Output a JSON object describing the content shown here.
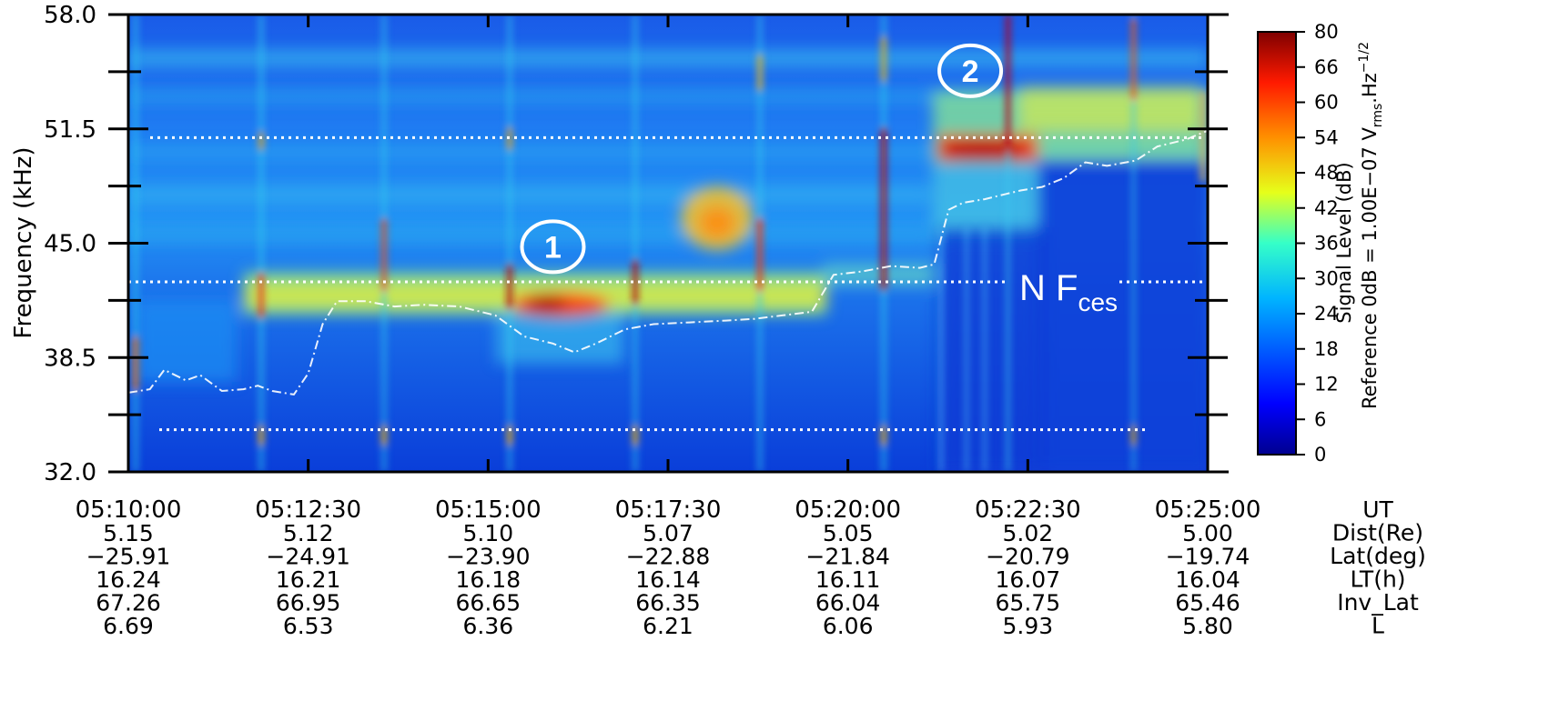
{
  "chart_data": {
    "type": "heatmap",
    "ylabel": "Frequency (kHz)",
    "y_ticks": [
      "32.0",
      "38.5",
      "45.0",
      "51.5",
      "58.0"
    ],
    "y_tick_values": [
      32.0,
      38.5,
      45.0,
      51.5,
      58.0
    ],
    "ylim": [
      32.0,
      58.0
    ],
    "x_ticks": [
      "05:10:00",
      "05:12:30",
      "05:15:00",
      "05:17:30",
      "05:20:00",
      "05:22:30",
      "05:25:00"
    ],
    "x_tick_minutes": [
      0,
      2.5,
      5,
      7.5,
      10,
      12.5,
      15
    ],
    "xlim_minutes": [
      0,
      15
    ],
    "ephemeris": {
      "labels": [
        "UT",
        "Dist(Re)",
        "Lat(deg)",
        "LT(h)",
        "Inv_Lat",
        "L"
      ],
      "rows": [
        [
          "5.15",
          "5.12",
          "5.10",
          "5.07",
          "5.05",
          "5.02",
          "5.00"
        ],
        [
          "−25.91",
          "−24.91",
          "−23.90",
          "−22.88",
          "−21.84",
          "−20.79",
          "−19.74"
        ],
        [
          "16.24",
          "16.21",
          "16.18",
          "16.14",
          "16.11",
          "16.07",
          "16.04"
        ],
        [
          "67.26",
          "66.95",
          "66.65",
          "66.35",
          "66.04",
          "65.75",
          "65.46"
        ],
        [
          "6.69",
          "6.53",
          "6.36",
          "6.21",
          "6.06",
          "5.93",
          "5.80"
        ]
      ]
    },
    "colorbar": {
      "ticks": [
        "80",
        "66",
        "60",
        "54",
        "48",
        "42",
        "36",
        "30",
        "24",
        "18",
        "12",
        "6",
        "0"
      ],
      "tick_values": [
        80,
        66,
        60,
        54,
        48,
        42,
        36,
        30,
        24,
        18,
        12,
        6,
        0
      ],
      "range": [
        0,
        80
      ],
      "label_line1": "Signal Level (dB)",
      "label_line2": "Reference 0dB = 1.00E−07 V",
      "label_sub": "rms",
      "label_tail": ".Hz",
      "label_sup": "−1/2"
    },
    "reference_lines_khz": [
      51.0,
      42.8,
      34.4
    ],
    "cyclotron_harmonic_label": "N F",
    "cyclotron_harmonic_sub": "ces",
    "event_markers": [
      {
        "label": "1",
        "minute": 5.9,
        "khz": 44.8
      },
      {
        "label": "2",
        "minute": 11.7,
        "khz": 54.8
      }
    ],
    "boundary_trace": [
      [
        0.0,
        36.5
      ],
      [
        0.3,
        36.7
      ],
      [
        0.5,
        37.8
      ],
      [
        0.8,
        37.2
      ],
      [
        1.0,
        37.5
      ],
      [
        1.3,
        36.6
      ],
      [
        1.6,
        36.7
      ],
      [
        1.8,
        36.9
      ],
      [
        2.0,
        36.6
      ],
      [
        2.3,
        36.4
      ],
      [
        2.5,
        37.6
      ],
      [
        2.7,
        40.4
      ],
      [
        2.9,
        41.7
      ],
      [
        3.3,
        41.7
      ],
      [
        3.7,
        41.4
      ],
      [
        4.1,
        41.5
      ],
      [
        4.6,
        41.4
      ],
      [
        5.1,
        40.9
      ],
      [
        5.3,
        40.3
      ],
      [
        5.5,
        39.7
      ],
      [
        5.9,
        39.3
      ],
      [
        6.2,
        38.8
      ],
      [
        6.5,
        39.3
      ],
      [
        6.9,
        40.1
      ],
      [
        7.3,
        40.4
      ],
      [
        7.8,
        40.5
      ],
      [
        8.3,
        40.6
      ],
      [
        8.7,
        40.7
      ],
      [
        9.1,
        40.9
      ],
      [
        9.5,
        41.1
      ],
      [
        9.8,
        43.2
      ],
      [
        10.2,
        43.4
      ],
      [
        10.6,
        43.7
      ],
      [
        11.0,
        43.6
      ],
      [
        11.2,
        43.8
      ],
      [
        11.4,
        46.9
      ],
      [
        11.6,
        47.3
      ],
      [
        11.9,
        47.5
      ],
      [
        12.2,
        47.8
      ],
      [
        12.4,
        48.0
      ],
      [
        12.7,
        48.2
      ],
      [
        13.0,
        48.7
      ],
      [
        13.3,
        49.6
      ],
      [
        13.6,
        49.4
      ],
      [
        14.0,
        49.7
      ],
      [
        14.3,
        50.5
      ],
      [
        14.7,
        50.9
      ],
      [
        15.0,
        51.4
      ]
    ]
  }
}
